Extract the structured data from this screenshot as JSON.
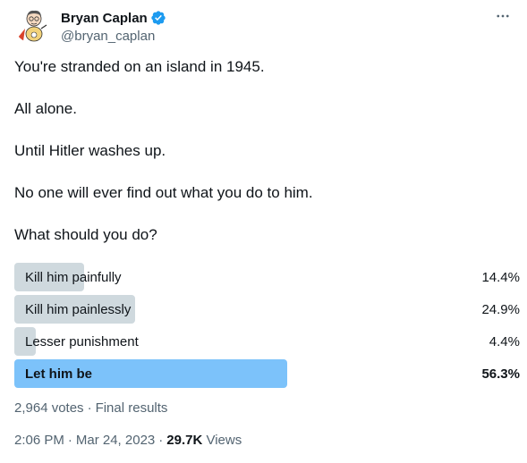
{
  "author": {
    "display_name": "Bryan Caplan",
    "handle": "@bryan_caplan",
    "verified": true
  },
  "more_icon": "more-horizontal-icon",
  "tweet_lines": [
    "You're stranded on an island in 1945.",
    "All alone.",
    "Until Hitler washes up.",
    "No one will ever find out what you do to him.",
    "What should you do?"
  ],
  "poll": {
    "options": [
      {
        "label": "Kill him painfully",
        "percent_text": "14.4%",
        "percent": 14.4,
        "winner": false
      },
      {
        "label": "Kill him painlessly",
        "percent_text": "24.9%",
        "percent": 24.9,
        "winner": false
      },
      {
        "label": "Lesser punishment",
        "percent_text": "4.4%",
        "percent": 4.4,
        "winner": false
      },
      {
        "label": "Let him be",
        "percent_text": "56.3%",
        "percent": 56.3,
        "winner": true
      }
    ],
    "votes": "2,964 votes",
    "separator": "·",
    "status": "Final results"
  },
  "meta": {
    "time": "2:06 PM",
    "date": "Mar 24, 2023",
    "views_count": "29.7K",
    "views_label": "Views",
    "separator": "·"
  },
  "colors": {
    "bar_default": "#cfd9de",
    "bar_winner": "#7cc2fa",
    "verified": "#1d9bf0",
    "secondary_text": "#536471"
  }
}
